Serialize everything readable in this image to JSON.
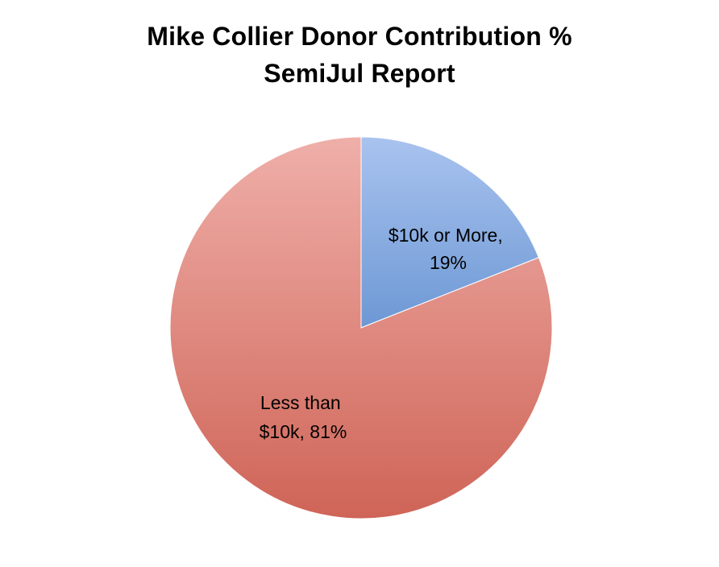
{
  "chart_data": {
    "type": "pie",
    "title": "Mike Collier Donor Contribution %",
    "subtitle": "SemiJul Report",
    "slices": [
      {
        "label": "$10k or More,",
        "percent_text": "19%",
        "value": 19,
        "color_top": "#a9c3ef",
        "color_bottom": "#6d98d4"
      },
      {
        "label": "Less than",
        "percent_text": "$10k, 81%",
        "value": 81,
        "color_top": "#efafa9",
        "color_bottom": "#cf6457"
      }
    ]
  }
}
